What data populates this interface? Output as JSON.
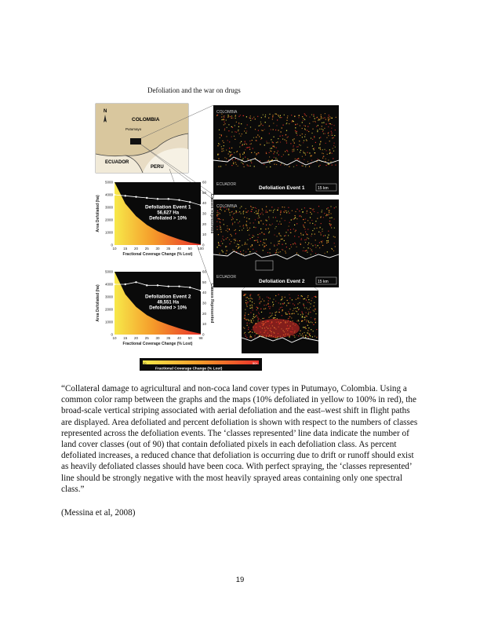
{
  "running_head": "Defoliation and the war on drugs",
  "figure": {
    "inset_map": {
      "colombia_label": "COLOMBIA",
      "putumayo_label": "Putumayo",
      "ecuador_label": "ECUADOR",
      "peru_label": "PERU",
      "north_label": "N"
    },
    "map1": {
      "top_label": "COLOMBIA",
      "bottom_label": "ECUADOR",
      "title": "Defoliation Event 1",
      "scale": "15 km"
    },
    "map2": {
      "top_label": "COLOMBIA",
      "bottom_label": "ECUADOR",
      "title": "Defoliation Event 2",
      "scale": "15 km"
    },
    "colorbar": {
      "min_label": "10",
      "max_label": "50+",
      "title": "Fractional Coverage Change (% Lost)",
      "colors": [
        "#f7e94a",
        "#f59a2a",
        "#e8302a"
      ]
    }
  },
  "chart_data": [
    {
      "type": "area",
      "title": "Defoliation Event 1",
      "annotation": [
        "Defoliation Event 1",
        "56,627 Ha",
        "Defoliated > 10%"
      ],
      "xlabel": "Fractional Coverage Change (% Lost)",
      "ylabel": "Area Defoliated (ha)",
      "y2label": "Classes Represented",
      "categories": [
        "10",
        "15",
        "20",
        "25",
        "30",
        "35",
        "40",
        "50",
        "100"
      ],
      "ylim": [
        0,
        5000
      ],
      "yticks": [
        "0",
        "1000",
        "2000",
        "3000",
        "4000",
        "5000"
      ],
      "y2lim": [
        0,
        60
      ],
      "y2ticks": [
        "0",
        "10",
        "20",
        "30",
        "40",
        "50",
        "60"
      ],
      "series": [
        {
          "values": [
            5000,
            3300,
            2300,
            1600,
            1100,
            750,
            450,
            200,
            50
          ]
        },
        {
          "values": [
            48,
            47,
            46,
            45,
            44,
            44,
            43,
            41,
            38
          ]
        }
      ]
    },
    {
      "type": "area",
      "title": "Defoliation Event 2",
      "annotation": [
        "Defoliation Event 2",
        "49,551 Ha",
        "Defoliated > 10%"
      ],
      "xlabel": "Fractional Coverage Change (% Lost)",
      "ylabel": "Area Defoliated (ha)",
      "y2label": "Classes Represented",
      "categories": [
        "10",
        "15",
        "20",
        "25",
        "30",
        "35",
        "40",
        "50",
        "98"
      ],
      "ylim": [
        0,
        5000
      ],
      "yticks": [
        "0",
        "1000",
        "2000",
        "3000",
        "4000",
        "5000"
      ],
      "y2lim": [
        0,
        60
      ],
      "y2ticks": [
        "0",
        "10",
        "20",
        "30",
        "40",
        "50",
        "60"
      ],
      "series": [
        {
          "values": [
            5000,
            3200,
            2200,
            1550,
            1100,
            780,
            500,
            250,
            60
          ]
        },
        {
          "values": [
            48,
            48,
            50,
            47,
            47,
            46,
            46,
            45,
            42
          ]
        }
      ]
    }
  ],
  "quote": "“Collateral damage to agricultural and non-coca land cover types in Putumayo, Colombia. Using a common color ramp between the graphs and the maps (10% defoliated in yellow to 100% in red), the broad-scale vertical striping associated with aerial defoliation and the east–west shift in flight paths are displayed. Area defoliated and percent defoliation is shown with respect to the numbers of classes represented across the defoliation events. The ‘classes represented’ line data indicate the number of land cover classes (out of 90) that contain defoliated pixels in each defoliation class. As percent defoliated increases, a reduced chance that defoliation is occurring due to drift or runoff should exist as heavily defoliated classes should have been coca. With perfect spraying, the ‘classes represented’ line should be strongly negative with the most heavily sprayed areas containing only one spectral class.”",
  "citation": "(Messina et al, 2008)",
  "page_number": "19"
}
